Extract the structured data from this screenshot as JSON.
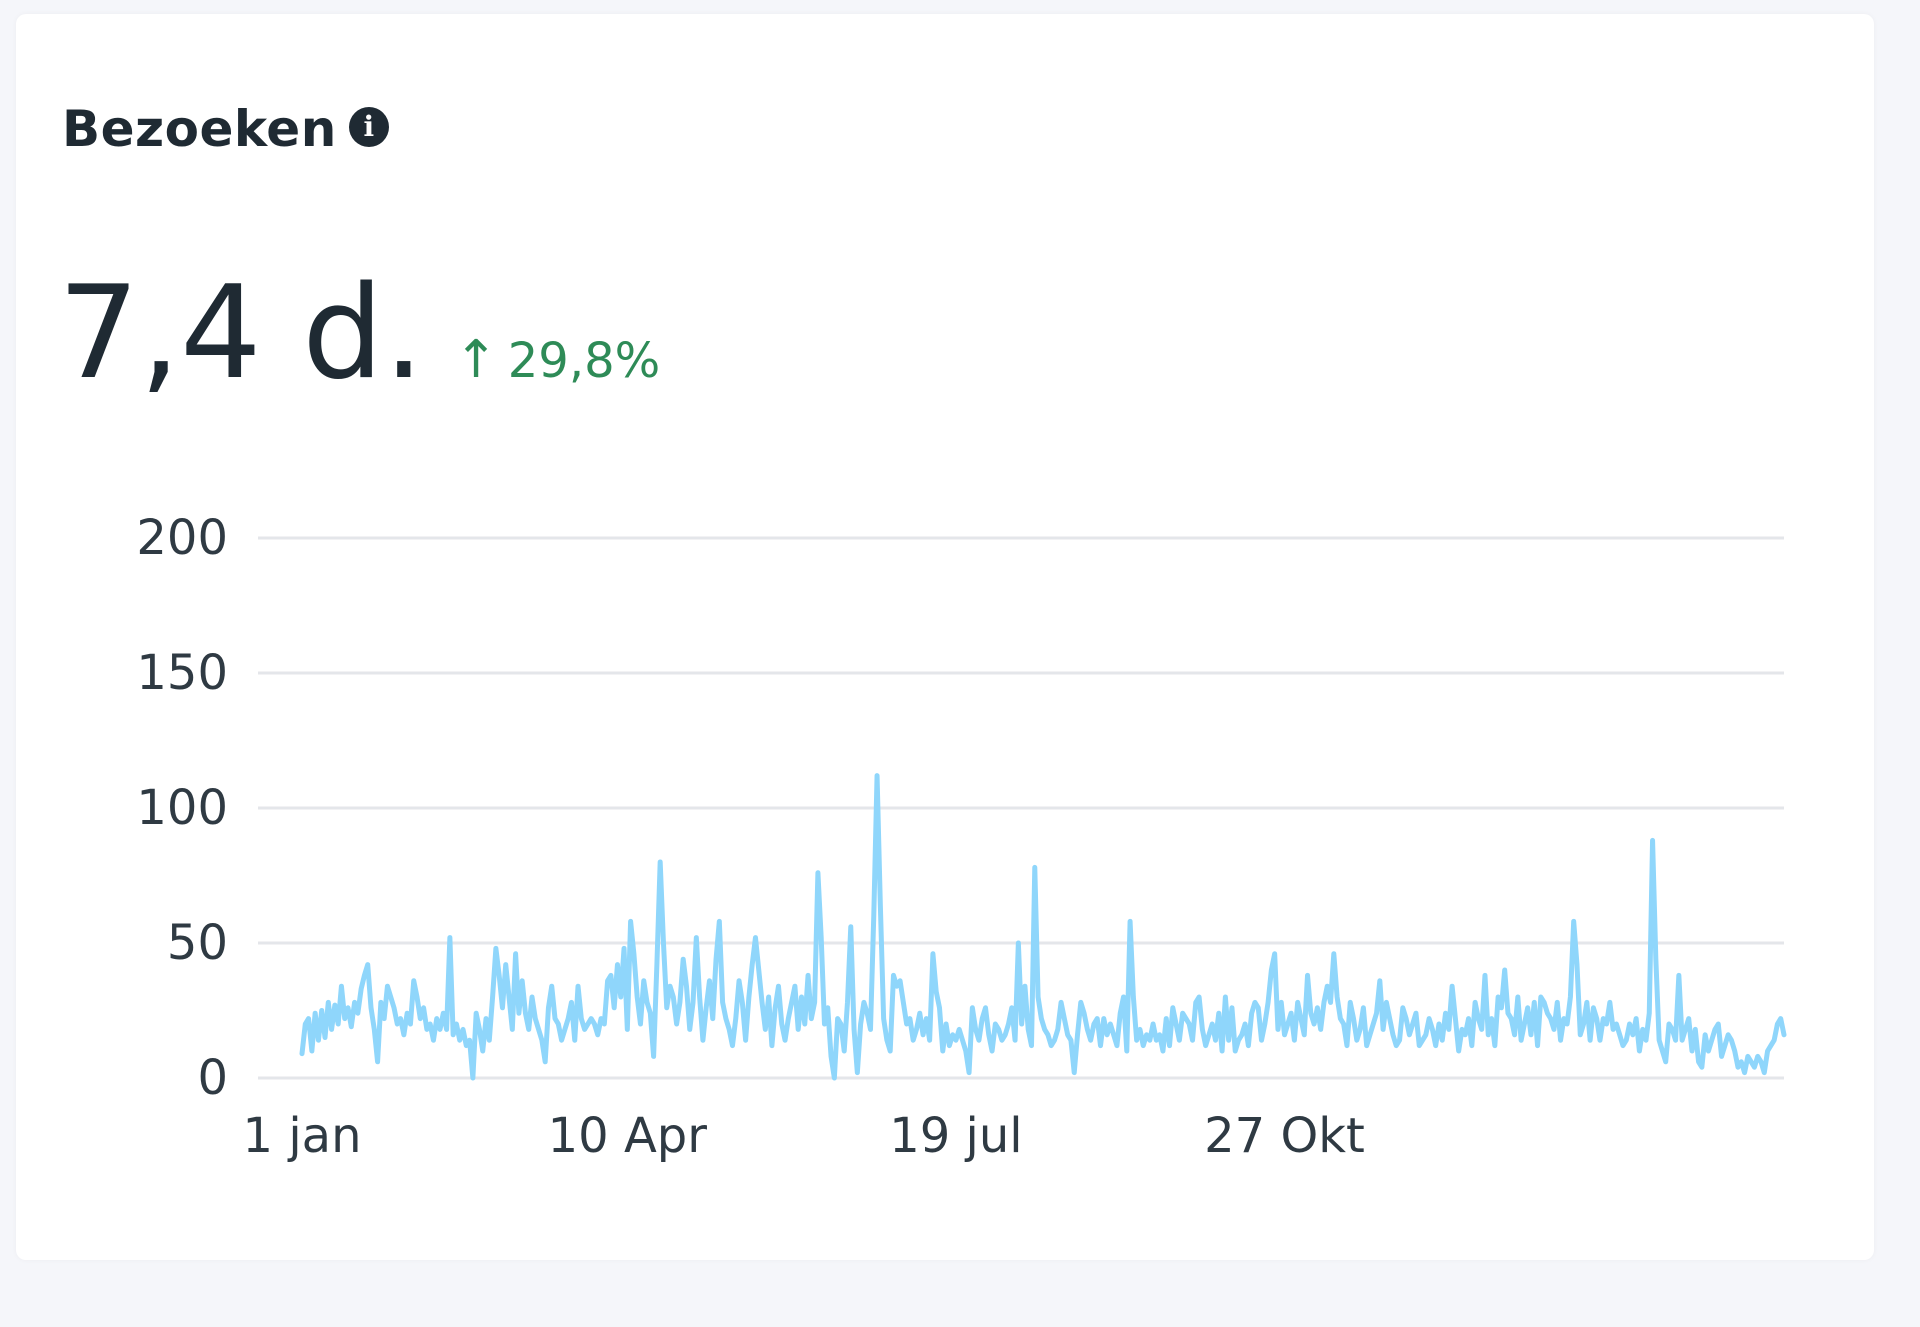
{
  "card": {
    "title": "Bezoeken",
    "info_icon": "info-icon",
    "metric_value": "7,4 d.",
    "delta_arrow": "↑",
    "delta_value": "29,8%",
    "delta_color": "#2e8b57"
  },
  "chart_data": {
    "type": "line",
    "title": "",
    "xlabel": "",
    "ylabel": "",
    "ylim": [
      0,
      200
    ],
    "y_ticks": [
      0,
      50,
      100,
      150,
      200
    ],
    "x_tick_labels": [
      "1 jan",
      "10 Apr",
      "19 jul",
      "27 Okt"
    ],
    "x_tick_days": [
      0,
      99,
      199,
      299
    ],
    "grid": true,
    "legend": "none",
    "line_color": "#8fd6fb",
    "series": [
      {
        "values": [
          9,
          20,
          22,
          10,
          24,
          14,
          25,
          15,
          28,
          18,
          27,
          20,
          34,
          22,
          26,
          19,
          28,
          24,
          33,
          38,
          42,
          26,
          18,
          6,
          28,
          22,
          34,
          30,
          26,
          20,
          22,
          16,
          24,
          20,
          36,
          30,
          22,
          26,
          18,
          20,
          14,
          22,
          18,
          24,
          18,
          52,
          16,
          20,
          14,
          18,
          12,
          14,
          0,
          24,
          18,
          10,
          22,
          14,
          30,
          48,
          38,
          26,
          42,
          30,
          18,
          46,
          24,
          36,
          24,
          18,
          30,
          22,
          18,
          14,
          6,
          26,
          34,
          22,
          20,
          14,
          18,
          22,
          28,
          14,
          34,
          22,
          18,
          20,
          22,
          20,
          16,
          22,
          20,
          36,
          38,
          26,
          42,
          30,
          48,
          18,
          58,
          46,
          30,
          20,
          36,
          28,
          24,
          8,
          42,
          80,
          50,
          26,
          34,
          30,
          20,
          28,
          44,
          34,
          18,
          28,
          52,
          30,
          14,
          26,
          36,
          22,
          44,
          58,
          28,
          22,
          18,
          12,
          22,
          36,
          28,
          14,
          30,
          42,
          52,
          40,
          28,
          18,
          30,
          12,
          26,
          34,
          20,
          14,
          22,
          28,
          34,
          18,
          30,
          20,
          38,
          22,
          28,
          76,
          52,
          20,
          26,
          8,
          0,
          22,
          20,
          10,
          28,
          56,
          18,
          2,
          20,
          28,
          24,
          18,
          60,
          112,
          64,
          22,
          14,
          10,
          38,
          34,
          36,
          28,
          20,
          22,
          14,
          18,
          24,
          16,
          22,
          14,
          46,
          32,
          26,
          10,
          20,
          12,
          16,
          14,
          18,
          14,
          10,
          2,
          26,
          18,
          14,
          22,
          26,
          16,
          10,
          20,
          18,
          14,
          16,
          20,
          26,
          14,
          50,
          20,
          34,
          18,
          12,
          78,
          30,
          22,
          18,
          16,
          12,
          14,
          18,
          28,
          22,
          16,
          14,
          2,
          16,
          28,
          24,
          18,
          14,
          20,
          22,
          12,
          22,
          16,
          20,
          16,
          12,
          24,
          30,
          10,
          58,
          30,
          14,
          18,
          12,
          16,
          14,
          20,
          14,
          16,
          10,
          22,
          12,
          26,
          20,
          14,
          24,
          22,
          20,
          14,
          28,
          30,
          18,
          12,
          16,
          20,
          14,
          24,
          10,
          30,
          14,
          26,
          10,
          14,
          16,
          20,
          12,
          24,
          28,
          26,
          14,
          20,
          28,
          40,
          46,
          18,
          28,
          16,
          20,
          24,
          14,
          28,
          22,
          16,
          38,
          24,
          20,
          26,
          18,
          28,
          34,
          28,
          46,
          30,
          22,
          20,
          12,
          28,
          22,
          14,
          18,
          26,
          12,
          16,
          20,
          24,
          36,
          18,
          28,
          22,
          16,
          12,
          14,
          26,
          22,
          16,
          20,
          24,
          12,
          14,
          16,
          22,
          18,
          12,
          20,
          14,
          24,
          18,
          34,
          22,
          10,
          18,
          16,
          22,
          12,
          28,
          22,
          18,
          38,
          16,
          22,
          12,
          30,
          26,
          40,
          24,
          22,
          16,
          30,
          14,
          20,
          26,
          16,
          28,
          12,
          30,
          28,
          24,
          22,
          18,
          28,
          14,
          22,
          20,
          30,
          58,
          42,
          16,
          20,
          28,
          14,
          26,
          22,
          14,
          22,
          20,
          28,
          18,
          20,
          16,
          12,
          14,
          20,
          16,
          22,
          10,
          18,
          14,
          24,
          88,
          44,
          14,
          10,
          6,
          20,
          18,
          14,
          38,
          14,
          18,
          22,
          10,
          18,
          6,
          4,
          16,
          10,
          14,
          18,
          20,
          8,
          12,
          16,
          14,
          10,
          4,
          6,
          2,
          8,
          6,
          4,
          8,
          6,
          2,
          10,
          12,
          14,
          20,
          22,
          16
        ]
      }
    ]
  }
}
